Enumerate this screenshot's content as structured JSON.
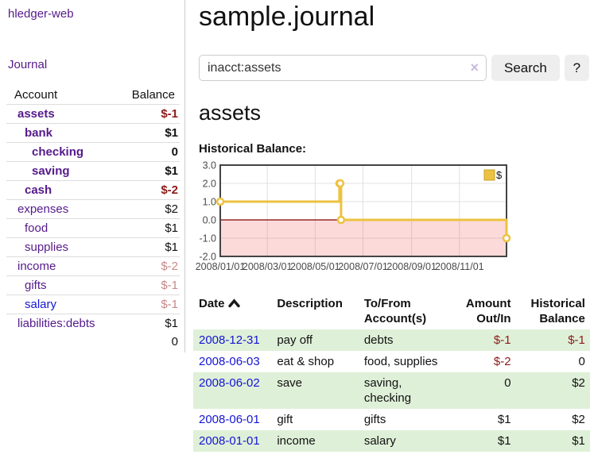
{
  "app": {
    "brand": "hledger-web",
    "nav_journal": "Journal"
  },
  "sidebar": {
    "table": {
      "col_account": "Account",
      "col_balance": "Balance"
    },
    "accounts": [
      {
        "name": "assets",
        "indent": 1,
        "bold": true,
        "blue": false,
        "balance": "$-1",
        "balance_class": "neg-strong"
      },
      {
        "name": "bank",
        "indent": 2,
        "bold": true,
        "blue": false,
        "balance": "$1",
        "balance_class": "num"
      },
      {
        "name": "checking",
        "indent": 3,
        "bold": true,
        "blue": false,
        "balance": "0",
        "balance_class": "num"
      },
      {
        "name": "saving",
        "indent": 3,
        "bold": true,
        "blue": false,
        "balance": "$1",
        "balance_class": "num"
      },
      {
        "name": "cash",
        "indent": 2,
        "bold": true,
        "blue": false,
        "balance": "$-2",
        "balance_class": "neg-strong"
      },
      {
        "name": "expenses",
        "indent": 1,
        "bold": false,
        "blue": false,
        "balance": "$2",
        "balance_class": "num"
      },
      {
        "name": "food",
        "indent": 2,
        "bold": false,
        "blue": false,
        "balance": "$1",
        "balance_class": "num"
      },
      {
        "name": "supplies",
        "indent": 2,
        "bold": false,
        "blue": false,
        "balance": "$1",
        "balance_class": "num"
      },
      {
        "name": "income",
        "indent": 1,
        "bold": false,
        "blue": false,
        "balance": "$-2",
        "balance_class": "neg-soft"
      },
      {
        "name": "gifts",
        "indent": 2,
        "bold": false,
        "blue": false,
        "balance": "$-1",
        "balance_class": "neg-soft"
      },
      {
        "name": "salary",
        "indent": 2,
        "bold": false,
        "blue": true,
        "balance": "$-1",
        "balance_class": "neg-soft"
      },
      {
        "name": "liabilities:debts",
        "indent": 1,
        "bold": false,
        "blue": false,
        "balance": "$1",
        "balance_class": "num"
      }
    ],
    "total": "0"
  },
  "main": {
    "title": "sample.journal",
    "search": {
      "value": "inacct:assets",
      "clear_icon": "×",
      "button": "Search",
      "help_button": "?"
    },
    "account_heading": "assets",
    "chart_label": "Historical Balance:"
  },
  "chart_data": {
    "type": "line",
    "step": true,
    "title": "Historical Balance",
    "series": [
      {
        "name": "$",
        "color": "#edc240",
        "points": [
          [
            "2008-01-01",
            1
          ],
          [
            "2008-06-01",
            2
          ],
          [
            "2008-06-02",
            2
          ],
          [
            "2008-06-03",
            0
          ],
          [
            "2008-12-31",
            -1
          ]
        ]
      }
    ],
    "x_range": [
      "2008-01-01",
      "2008-12-31"
    ],
    "x_ticks": [
      {
        "date": "2008-01-01",
        "label": "2008/01/01"
      },
      {
        "date": "2008-03-01",
        "label": "2008/03/01"
      },
      {
        "date": "2008-05-01",
        "label": "2008/05/01"
      },
      {
        "date": "2008-07-01",
        "label": "2008/07/01"
      },
      {
        "date": "2008-09-01",
        "label": "2008/09/01"
      },
      {
        "date": "2008-11-01",
        "label": "2008/11/01"
      }
    ],
    "y_ticks": [
      3.0,
      2.0,
      1.0,
      0.0,
      -1.0,
      -2.0
    ],
    "ylim": [
      -2,
      3
    ],
    "grid": true,
    "legend_position": "top-right",
    "legend": {
      "label": "$",
      "swatch_color": "#edc240",
      "swatch_border": "#c7a02e"
    },
    "zero_line_color": "#800000",
    "negative_region_color": "rgba(240,70,70,0.2)",
    "plot_border_color": "#444",
    "gridline_color": "#e0e0e0",
    "tick_label_color": "#4a4a4a",
    "marker": {
      "fill": "#ffffff",
      "radius": 4
    }
  },
  "register": {
    "columns": [
      {
        "label": "Date",
        "align": "left",
        "sortable": true,
        "cls": "c-date"
      },
      {
        "label": "Description",
        "align": "left",
        "sortable": false,
        "cls": "c-desc"
      },
      {
        "label": "To/From Account(s)",
        "align": "left",
        "sortable": false,
        "cls": "c-acct"
      },
      {
        "label": "Amount Out/In",
        "align": "right",
        "sortable": false,
        "cls": "c-amt"
      },
      {
        "label": "Historical Balance",
        "align": "right",
        "sortable": false,
        "cls": "c-bal"
      }
    ],
    "rows": [
      {
        "date": "2008-12-31",
        "description": "pay off",
        "accounts": "debts",
        "amount": "$-1",
        "amount_negative": true,
        "balance": "$-1",
        "balance_negative": true,
        "shaded": true
      },
      {
        "date": "2008-06-03",
        "description": "eat & shop",
        "accounts": "food, supplies",
        "amount": "$-2",
        "amount_negative": true,
        "balance": "0",
        "balance_negative": false,
        "shaded": false
      },
      {
        "date": "2008-06-02",
        "description": "save",
        "accounts": "saving, checking",
        "amount": "0",
        "amount_negative": false,
        "balance": "$2",
        "balance_negative": false,
        "shaded": true
      },
      {
        "date": "2008-06-01",
        "description": "gift",
        "accounts": "gifts",
        "amount": "$1",
        "amount_negative": false,
        "balance": "$2",
        "balance_negative": false,
        "shaded": false
      },
      {
        "date": "2008-01-01",
        "description": "income",
        "accounts": "salary",
        "amount": "$1",
        "amount_negative": false,
        "balance": "$1",
        "balance_negative": false,
        "shaded": true
      }
    ]
  }
}
